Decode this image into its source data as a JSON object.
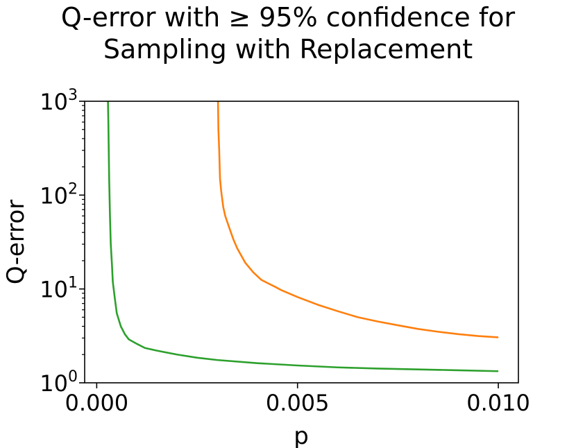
{
  "title": {
    "line1": "Q-error with ≥ 95% confidence for",
    "line2": "Sampling with Replacement"
  },
  "chart_data": {
    "type": "line",
    "title": "Q-error with ≥ 95% confidence for Sampling with Replacement",
    "xlabel": "p",
    "ylabel": "Q-error",
    "xlim": [
      -0.0003,
      0.0105
    ],
    "ylim": [
      1,
      1000
    ],
    "yscale": "log",
    "grid": false,
    "xticks": [
      0.0,
      0.005,
      0.01
    ],
    "xtick_labels": [
      "0.000",
      "0.005",
      "0.010"
    ],
    "yticks": [
      1,
      10,
      100,
      1000
    ],
    "ytick_labels": [
      {
        "base": "10",
        "exp": "0"
      },
      {
        "base": "10",
        "exp": "1"
      },
      {
        "base": "10",
        "exp": "2"
      },
      {
        "base": "10",
        "exp": "3"
      }
    ],
    "series": [
      {
        "color": "#ff7f0e",
        "points": [
          [
            0.00302,
            1000
          ],
          [
            0.00303,
            500
          ],
          [
            0.00305,
            300
          ],
          [
            0.00307,
            150
          ],
          [
            0.0031,
            110
          ],
          [
            0.00315,
            75
          ],
          [
            0.0032,
            60
          ],
          [
            0.0033,
            45
          ],
          [
            0.0034,
            34
          ],
          [
            0.0035,
            27
          ],
          [
            0.0037,
            19
          ],
          [
            0.0039,
            15
          ],
          [
            0.0041,
            12.5
          ],
          [
            0.0043,
            11.3
          ],
          [
            0.00445,
            10.5
          ],
          [
            0.0046,
            9.7
          ],
          [
            0.005,
            8.2
          ],
          [
            0.0055,
            6.8
          ],
          [
            0.006,
            5.8
          ],
          [
            0.0065,
            5.0
          ],
          [
            0.007,
            4.5
          ],
          [
            0.0075,
            4.1
          ],
          [
            0.008,
            3.75
          ],
          [
            0.0085,
            3.5
          ],
          [
            0.009,
            3.3
          ],
          [
            0.0095,
            3.15
          ],
          [
            0.01,
            3.05
          ]
        ]
      },
      {
        "color": "#2ca02c",
        "points": [
          [
            0.00028,
            1000
          ],
          [
            0.00029,
            600
          ],
          [
            0.0003,
            300
          ],
          [
            0.00031,
            150
          ],
          [
            0.00033,
            60
          ],
          [
            0.00035,
            30
          ],
          [
            0.00038,
            18
          ],
          [
            0.0004,
            12
          ],
          [
            0.00045,
            8
          ],
          [
            0.0005,
            5.5
          ],
          [
            0.0006,
            4.0
          ],
          [
            0.0007,
            3.3
          ],
          [
            0.0008,
            2.9
          ],
          [
            0.001,
            2.6
          ],
          [
            0.0012,
            2.35
          ],
          [
            0.0015,
            2.2
          ],
          [
            0.002,
            2.0
          ],
          [
            0.0025,
            1.85
          ],
          [
            0.003,
            1.75
          ],
          [
            0.004,
            1.62
          ],
          [
            0.005,
            1.53
          ],
          [
            0.006,
            1.46
          ],
          [
            0.007,
            1.42
          ],
          [
            0.008,
            1.39
          ],
          [
            0.009,
            1.36
          ],
          [
            0.01,
            1.33
          ]
        ]
      }
    ]
  }
}
